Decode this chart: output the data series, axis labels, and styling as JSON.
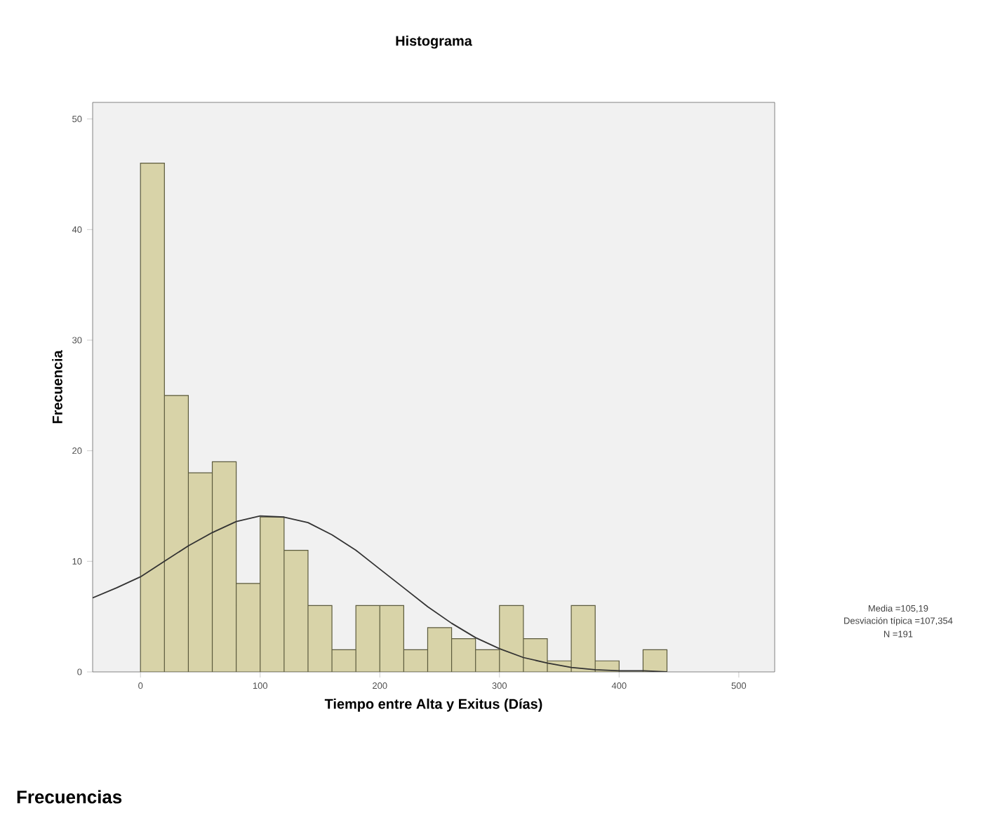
{
  "chart_data": {
    "type": "histogram",
    "title": "Histograma",
    "xlabel": "Tiempo entre Alta y Exitus (Días)",
    "ylabel": "Frecuencia",
    "bins": [
      0,
      20,
      40,
      60,
      80,
      100,
      120,
      140,
      160,
      180,
      200,
      220,
      240,
      260,
      280,
      300,
      320,
      340,
      360,
      380,
      400,
      420,
      440
    ],
    "values": [
      46,
      25,
      18,
      19,
      8,
      14,
      11,
      6,
      2,
      6,
      6,
      2,
      4,
      3,
      2,
      6,
      3,
      1,
      6,
      1,
      0,
      2
    ],
    "color": "#d8d3a8",
    "series": [
      {
        "type": "line",
        "color": "#333333",
        "x": [
          -40,
          -20,
          0,
          20,
          40,
          60,
          80,
          100,
          120,
          140,
          160,
          180,
          200,
          220,
          240,
          260,
          280,
          300,
          320,
          340,
          360,
          380,
          400,
          420,
          440
        ],
        "values": [
          6.7,
          7.6,
          8.6,
          10,
          11.4,
          12.6,
          13.6,
          14.1,
          14,
          13.5,
          12.4,
          11,
          9.3,
          7.6,
          5.9,
          4.4,
          3.1,
          2.1,
          1.3,
          0.8,
          0.4,
          0.2,
          0.1,
          0.1,
          0
        ]
      }
    ],
    "xlim": [
      -40,
      530
    ],
    "ylim": [
      0,
      51.5
    ],
    "xticks": [
      0,
      100,
      200,
      300,
      400,
      500
    ],
    "yticks": [
      0,
      10,
      20,
      30,
      40,
      50
    ],
    "grid": false,
    "annotations": [
      "Media =105,19",
      "Desviación típica =107,354",
      "N =191",
      "Frecuencias"
    ]
  }
}
